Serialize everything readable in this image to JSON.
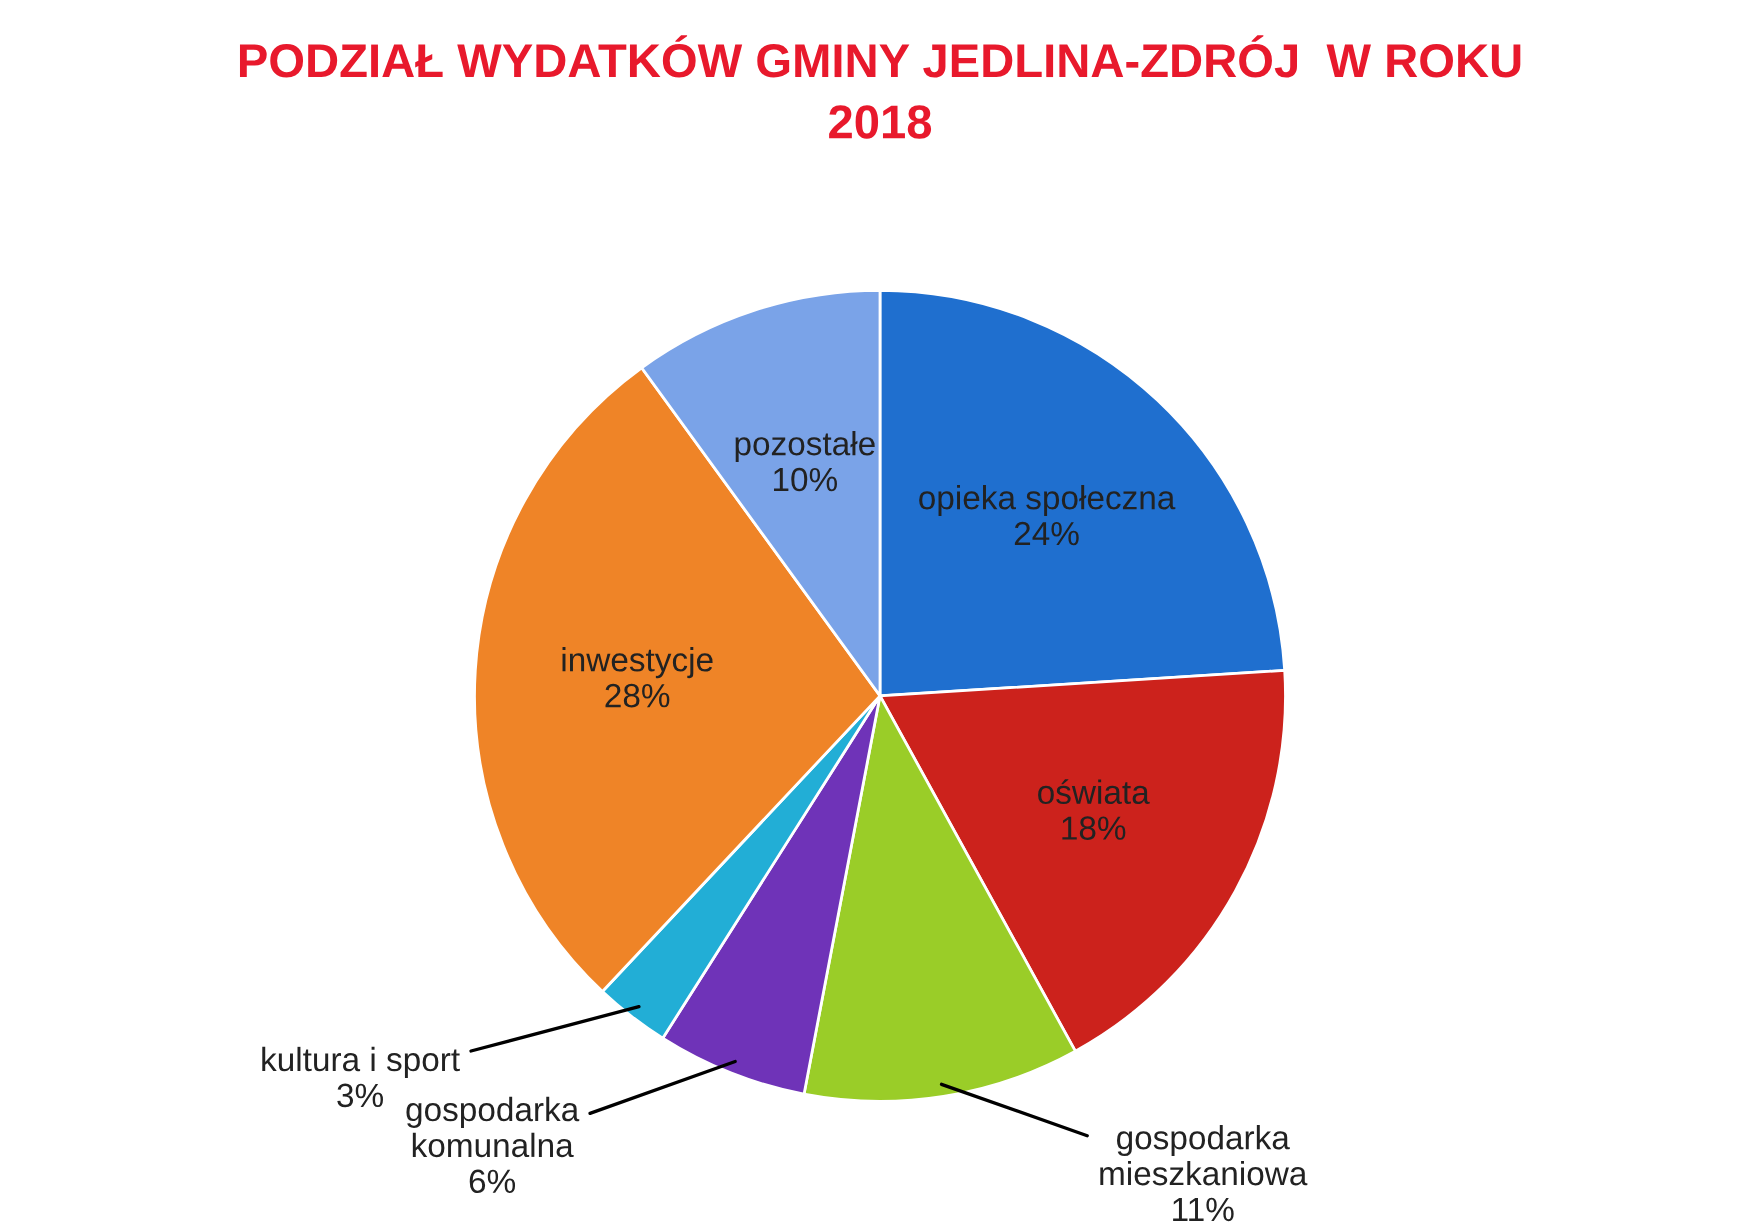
{
  "chart_data": {
    "type": "pie",
    "title": "PODZIAŁ WYDATKÓW GMINY JEDLINA-ZDRÓJ  W ROKU\n2018",
    "categories": [
      "opieka społeczna",
      "oświata",
      "gospodarka mieszkaniowa",
      "gospodarka komunalna",
      "kultura i sport",
      "inwestycje",
      "pozostałe"
    ],
    "values": [
      24,
      18,
      11,
      6,
      3,
      28,
      10
    ],
    "colors": [
      "#1f6fcf",
      "#cc221c",
      "#9acd28",
      "#6f33b8",
      "#22aed6",
      "#ef8427",
      "#7aa3e8"
    ],
    "value_labels": [
      "24%",
      "18%",
      "11%",
      "6%",
      "3%",
      "28%",
      "10%"
    ],
    "legend": false
  }
}
